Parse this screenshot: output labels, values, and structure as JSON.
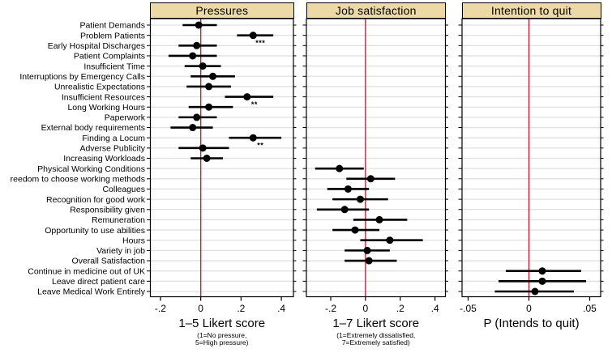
{
  "chart_data": {
    "type": "scatter",
    "variant": "forest-coefficient-plot",
    "orientation": "horizontal",
    "grid": true,
    "colors": {
      "header_bg": "#ecd9a6",
      "header_border": "#000000",
      "panel_border": "#000000",
      "gridline": "#e0e0e0",
      "refline": "#c8203c",
      "marker": "#000000",
      "ci": "#000000"
    },
    "panels": [
      {
        "title": "Pressures",
        "xlabel": "1–5 Likert score",
        "sublabel": [
          "(1=No pressure,",
          "5=High pressure)"
        ],
        "tick_values": [
          -0.2,
          0,
          0.2,
          0.4
        ],
        "tick_labels": [
          "-.2",
          "0",
          ".2",
          ".4"
        ],
        "xdomain": [
          -0.25,
          0.46
        ],
        "refline": 0
      },
      {
        "title": "Job satisfaction",
        "xlabel": "1–7 Likert score",
        "sublabel": [
          "(1=Extremely dissatisfied,",
          "7=Extremely satisfied)"
        ],
        "tick_values": [
          -0.2,
          0,
          0.2,
          0.4
        ],
        "tick_labels": [
          "-.2",
          "0",
          ".2",
          ".4"
        ],
        "xdomain": [
          -0.34,
          0.46
        ],
        "refline": 0
      },
      {
        "title": "Intention to quit",
        "xlabel": "P (Intends to quit)",
        "sublabel": [],
        "tick_values": [
          -0.05,
          0,
          0.05
        ],
        "tick_labels": [
          "-.05",
          "0",
          ".05"
        ],
        "xdomain": [
          -0.055,
          0.059
        ],
        "refline": 0
      }
    ],
    "rows": [
      {
        "label": "Patient Demands",
        "panel": 0,
        "est": -0.01,
        "lo": -0.09,
        "hi": 0.08,
        "stars": ""
      },
      {
        "label": "Problem Patients",
        "panel": 0,
        "est": 0.26,
        "lo": 0.18,
        "hi": 0.36,
        "stars": "***"
      },
      {
        "label": "Early Hospital Discharges",
        "panel": 0,
        "est": -0.02,
        "lo": -0.11,
        "hi": 0.08,
        "stars": ""
      },
      {
        "label": "Patient Complaints",
        "panel": 0,
        "est": -0.04,
        "lo": -0.16,
        "hi": 0.08,
        "stars": ""
      },
      {
        "label": "Insufficient Time",
        "panel": 0,
        "est": 0.01,
        "lo": -0.08,
        "hi": 0.1,
        "stars": ""
      },
      {
        "label": "Interruptions by Emergency Calls",
        "panel": 0,
        "est": 0.06,
        "lo": -0.05,
        "hi": 0.17,
        "stars": ""
      },
      {
        "label": "Unrealistic Expectations",
        "panel": 0,
        "est": 0.04,
        "lo": -0.07,
        "hi": 0.15,
        "stars": ""
      },
      {
        "label": "Insufficient Resources",
        "panel": 0,
        "est": 0.23,
        "lo": 0.12,
        "hi": 0.36,
        "stars": "**"
      },
      {
        "label": "Long Working Hours",
        "panel": 0,
        "est": 0.04,
        "lo": -0.06,
        "hi": 0.16,
        "stars": ""
      },
      {
        "label": "Paperwork",
        "panel": 0,
        "est": -0.02,
        "lo": -0.11,
        "hi": 0.08,
        "stars": ""
      },
      {
        "label": "External body requirements",
        "panel": 0,
        "est": -0.04,
        "lo": -0.15,
        "hi": 0.06,
        "stars": ""
      },
      {
        "label": "Finding a Locum",
        "panel": 0,
        "est": 0.26,
        "lo": 0.14,
        "hi": 0.4,
        "stars": "**"
      },
      {
        "label": "Adverse Publicity",
        "panel": 0,
        "est": 0.01,
        "lo": -0.11,
        "hi": 0.14,
        "stars": ""
      },
      {
        "label": "Increasing Workloads",
        "panel": 0,
        "est": 0.03,
        "lo": -0.05,
        "hi": 0.11,
        "stars": ""
      },
      {
        "label": "Physical Working Conditions",
        "panel": 1,
        "est": -0.15,
        "lo": -0.29,
        "hi": -0.01,
        "stars": ""
      },
      {
        "label": "reedom to choose working methods",
        "panel": 1,
        "est": 0.03,
        "lo": -0.11,
        "hi": 0.17,
        "stars": ""
      },
      {
        "label": "Colleagues",
        "panel": 1,
        "est": -0.1,
        "lo": -0.22,
        "hi": 0.02,
        "stars": ""
      },
      {
        "label": "Recognition for good work",
        "panel": 1,
        "est": -0.03,
        "lo": -0.19,
        "hi": 0.13,
        "stars": ""
      },
      {
        "label": "Responsibility given",
        "panel": 1,
        "est": -0.12,
        "lo": -0.28,
        "hi": 0.02,
        "stars": ""
      },
      {
        "label": "Remuneration",
        "panel": 1,
        "est": 0.08,
        "lo": -0.07,
        "hi": 0.24,
        "stars": ""
      },
      {
        "label": "Opportunity to use abilities",
        "panel": 1,
        "est": -0.06,
        "lo": -0.19,
        "hi": 0.08,
        "stars": ""
      },
      {
        "label": "Hours",
        "panel": 1,
        "est": 0.14,
        "lo": -0.03,
        "hi": 0.33,
        "stars": ""
      },
      {
        "label": "Variety in job",
        "panel": 1,
        "est": 0.01,
        "lo": -0.12,
        "hi": 0.14,
        "stars": ""
      },
      {
        "label": "Overall Satisfaction",
        "panel": 1,
        "est": 0.02,
        "lo": -0.12,
        "hi": 0.18,
        "stars": ""
      },
      {
        "label": "Continue in medicine out of UK",
        "panel": 2,
        "est": 0.011,
        "lo": -0.019,
        "hi": 0.043,
        "stars": ""
      },
      {
        "label": "Leave direct patient care",
        "panel": 2,
        "est": 0.011,
        "lo": -0.025,
        "hi": 0.047,
        "stars": ""
      },
      {
        "label": "Leave Medical Work Entirely",
        "panel": 2,
        "est": 0.005,
        "lo": -0.028,
        "hi": 0.037,
        "stars": ""
      }
    ]
  }
}
